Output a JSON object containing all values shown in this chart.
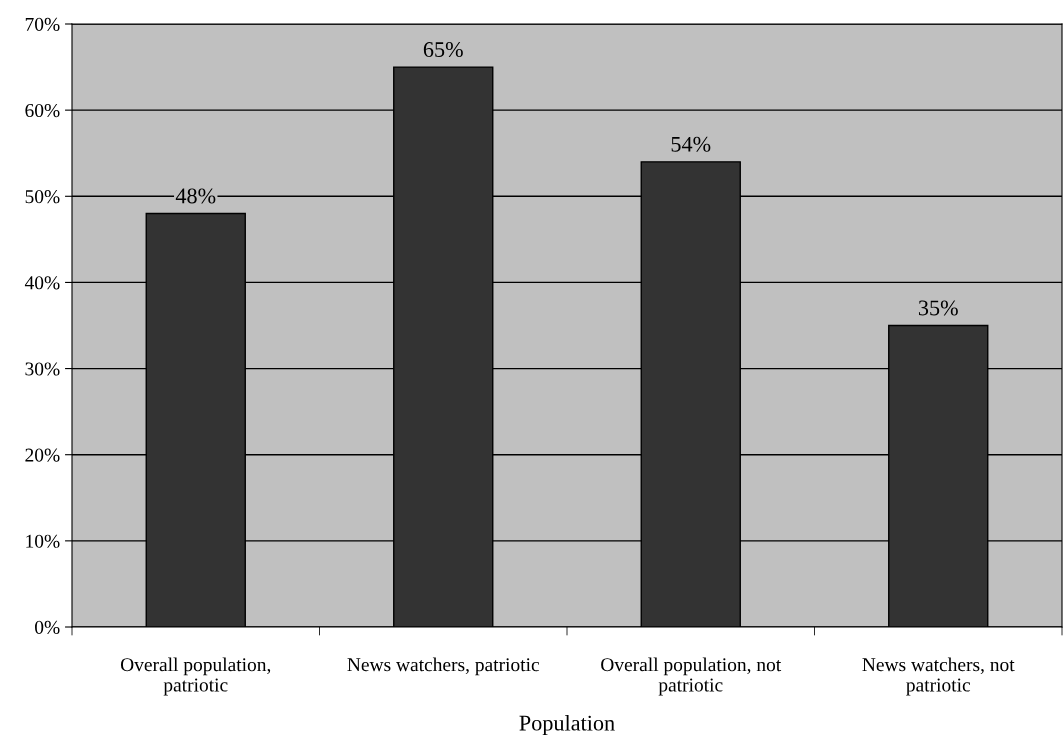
{
  "chart_data": {
    "type": "bar",
    "xlabel": "Population",
    "categories": [
      "Overall population,\npatriotic",
      "News watchers, patriotic",
      "Overall population, not\npatriotic",
      "News watchers, not\npatriotic"
    ],
    "values": [
      48,
      65,
      54,
      35
    ],
    "value_labels": [
      "48%",
      "65%",
      "54%",
      "35%"
    ],
    "color": "#333333",
    "ylim": [
      0,
      70
    ],
    "yticks": [
      {
        "value": 0,
        "label": "0%"
      },
      {
        "value": 10,
        "label": "10%"
      },
      {
        "value": 20,
        "label": "20%"
      },
      {
        "value": 30,
        "label": "30%"
      },
      {
        "value": 40,
        "label": "40%"
      },
      {
        "value": 50,
        "label": "50%"
      },
      {
        "value": 60,
        "label": "60%"
      },
      {
        "value": 70,
        "label": "70%"
      }
    ],
    "grid": "y",
    "legend": false
  }
}
